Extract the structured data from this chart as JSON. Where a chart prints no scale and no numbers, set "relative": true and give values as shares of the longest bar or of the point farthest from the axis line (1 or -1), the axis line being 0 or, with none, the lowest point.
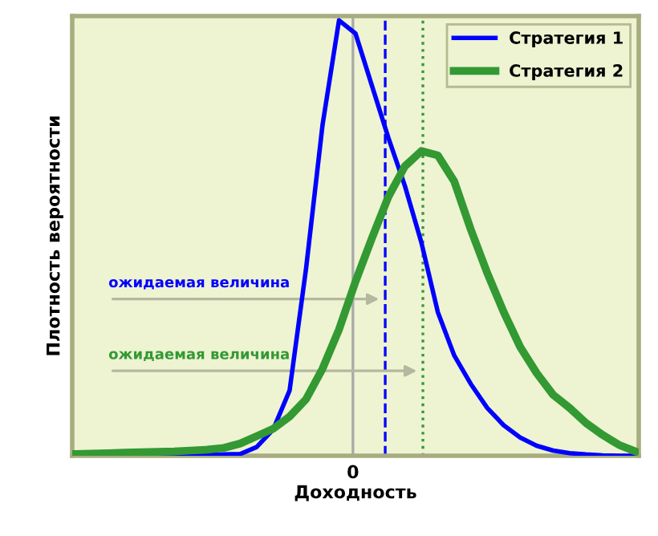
{
  "chart_data": {
    "type": "line",
    "relative": true,
    "xlabel": "Доходность",
    "ylabel": "Плотность вероятности",
    "tick_labels": false,
    "legend": "top right",
    "categories": [
      null,
      null,
      null,
      null,
      null,
      null,
      null,
      null,
      null,
      null,
      null,
      null,
      null,
      null,
      null,
      null,
      null,
      null,
      null,
      null,
      null,
      null,
      null,
      null,
      null,
      null,
      null,
      null,
      null,
      null,
      null,
      null,
      null,
      null,
      null
    ],
    "series": [
      {
        "name": "Стратегия 1",
        "color": "#0000ff",
        "values": [
          null,
          null,
          null,
          null,
          null,
          0,
          0,
          0,
          0.002,
          0.003,
          0.004,
          0.02,
          0.06,
          0.15,
          0.43,
          0.76,
          1,
          0.97,
          0.85,
          0.73,
          0.62,
          0.49,
          0.33,
          0.23,
          0.165,
          0.11,
          0.07,
          0.042,
          0.023,
          0.012,
          0.006,
          0.003,
          0.001,
          0,
          0
        ]
      },
      {
        "name": "Стратегия 2",
        "color": "#339933",
        "values": [
          0.004,
          0.005,
          0.006,
          0.007,
          0.008,
          0.009,
          0.01,
          0.012,
          0.014,
          0.018,
          0.028,
          0.045,
          0.062,
          0.09,
          0.13,
          0.2,
          0.29,
          0.4,
          0.5,
          0.595,
          0.665,
          0.7,
          0.69,
          0.63,
          0.52,
          0.42,
          0.33,
          0.25,
          0.19,
          0.14,
          0.11,
          0.075,
          0.048,
          0.025,
          0.01
        ]
      }
    ],
    "annotations": [
      "ожидаемая величина",
      "ожидаемая величина",
      "0"
    ]
  }
}
